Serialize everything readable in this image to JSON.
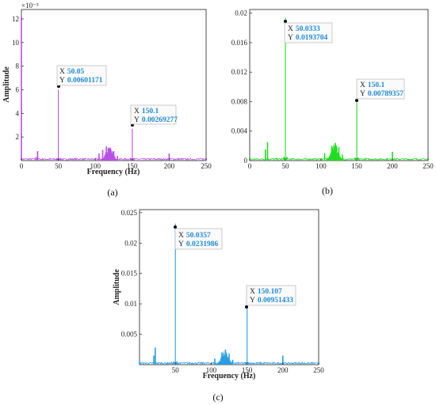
{
  "chart_data": [
    {
      "id": "a",
      "type": "line",
      "caption": "(a)",
      "xlabel": "Frequency (Hz)",
      "ylabel": "Amplitude",
      "xlim": [
        0,
        250
      ],
      "ylim": [
        0,
        0.0128
      ],
      "x_ticks": [
        "0",
        "50",
        "100",
        "150",
        "200",
        "250"
      ],
      "y_ticks": [
        "2",
        "4",
        "6",
        "8",
        "10",
        "12"
      ],
      "y_exponent": "×10⁻³",
      "color": "#b84fe6",
      "series": [
        {
          "x": [
            0,
            20,
            22,
            48,
            50.05,
            52,
            105,
            110,
            115,
            120,
            125,
            130,
            148,
            150.1,
            152,
            200,
            250
          ],
          "y": [
            0.0122,
            0.0003,
            0.0008,
            0.0002,
            0.00601171,
            0.0002,
            0.0006,
            0.0009,
            0.0012,
            0.001,
            0.0008,
            0.0004,
            0.0002,
            0.00269277,
            0.0002,
            0.0006,
            0.0002
          ]
        }
      ],
      "datatips": [
        {
          "x_label": "X",
          "x_value": "50.05",
          "y_label": "Y",
          "y_value": "0.00601171"
        },
        {
          "x_label": "X",
          "x_value": "150.1",
          "y_label": "Y",
          "y_value": "0.00269277"
        }
      ]
    },
    {
      "id": "b",
      "type": "line",
      "caption": "(b)",
      "xlabel": "",
      "ylabel": "",
      "xlim": [
        0,
        250
      ],
      "ylim": [
        0,
        0.0205
      ],
      "x_ticks": [
        "0",
        "50",
        "100",
        "150",
        "200",
        "250"
      ],
      "y_ticks": [
        "0",
        "0.004",
        "0.008",
        "0.012",
        "0.016",
        "0.02"
      ],
      "color": "#22dd22",
      "series": [
        {
          "x": [
            0,
            22,
            25,
            48,
            50.0333,
            52,
            105,
            115,
            120,
            125,
            130,
            148,
            150.1,
            152,
            200,
            250
          ],
          "y": [
            0.0005,
            0.0015,
            0.0025,
            0.0005,
            0.0193704,
            0.0005,
            0.001,
            0.002,
            0.0024,
            0.0018,
            0.0008,
            0.0004,
            0.00789357,
            0.0004,
            0.0012,
            0.0003
          ]
        }
      ],
      "datatips": [
        {
          "x_label": "X",
          "x_value": "50.0333",
          "y_label": "Y",
          "y_value": "0.0193704"
        },
        {
          "x_label": "X",
          "x_value": "150.1",
          "y_label": "Y",
          "y_value": "0.00789357"
        }
      ]
    },
    {
      "id": "c",
      "type": "line",
      "caption": "(c)",
      "xlabel": "Frequency (Hz)",
      "ylabel": "Amplitude",
      "xlim": [
        0,
        250
      ],
      "ylim": [
        0,
        0.0255
      ],
      "x_ticks": [
        "50",
        "100",
        "150",
        "200",
        "250"
      ],
      "y_ticks": [
        "0.005",
        "0.01",
        "0.015",
        "0.02",
        "0.025"
      ],
      "color": "#2a9ee6",
      "series": [
        {
          "x": [
            0,
            20,
            22,
            48,
            50.0357,
            52,
            105,
            115,
            120,
            125,
            130,
            148,
            150.107,
            152,
            200,
            250
          ],
          "y": [
            0.0005,
            0.0015,
            0.0028,
            0.0005,
            0.0231986,
            0.0005,
            0.001,
            0.002,
            0.0025,
            0.0018,
            0.0008,
            0.0004,
            0.00951433,
            0.0004,
            0.0015,
            0.0003
          ]
        }
      ],
      "datatips": [
        {
          "x_label": "X",
          "x_value": "50.0357",
          "y_label": "Y",
          "y_value": "0.0231986"
        },
        {
          "x_label": "X",
          "x_value": "150.107",
          "y_label": "Y",
          "y_value": "0.00951433"
        }
      ]
    }
  ]
}
